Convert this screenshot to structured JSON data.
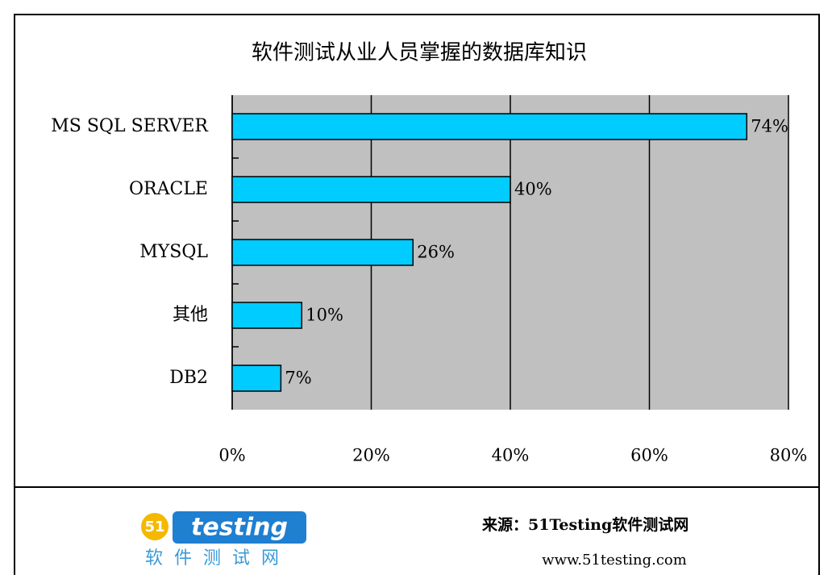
{
  "chart_data": {
    "type": "bar",
    "orientation": "horizontal",
    "title": "软件测试从业人员掌握的数据库知识",
    "categories": [
      "MS SQL SERVER",
      "ORACLE",
      "MYSQL",
      "其他",
      "DB2"
    ],
    "values": [
      74,
      40,
      26,
      10,
      7
    ],
    "value_labels": [
      "74%",
      "40%",
      "26%",
      "10%",
      "7%"
    ],
    "color": "#00ccff",
    "xlim": [
      0,
      80
    ],
    "xticks": [
      {
        "value": 0,
        "label": "0%"
      },
      {
        "value": 20,
        "label": "20%"
      },
      {
        "value": 40,
        "label": "40%"
      },
      {
        "value": 60,
        "label": "60%"
      },
      {
        "value": 80,
        "label": "80%"
      }
    ],
    "grid": true
  },
  "footer": {
    "source": "来源：51Testing软件测试网",
    "url": "www.51testing.com",
    "logo": {
      "badge": "51",
      "name": "testing",
      "subtitle": "软件测试网"
    }
  }
}
